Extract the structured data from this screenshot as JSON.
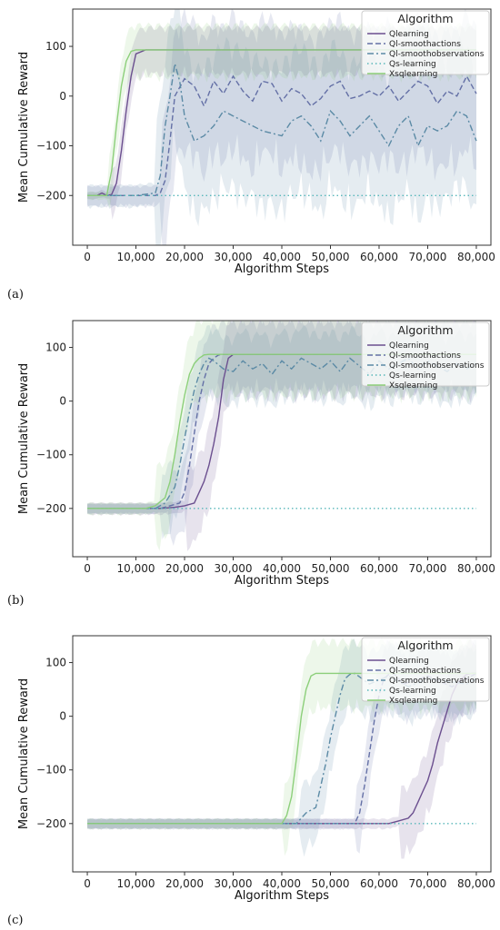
{
  "colors": {
    "Qlearning": "#6b4f8f",
    "Ql-smoothactions": "#6470a6",
    "Ql-smoothobservations": "#5b8aa5",
    "Qs-learning": "#58b7ba",
    "Xsqlearning": "#8ccf7a"
  },
  "chart_data": [
    {
      "type": "line",
      "panel_label": "(a)",
      "xlabel": "Algorithm Steps",
      "ylabel": "Mean Cumulative Reward",
      "xlim": [
        -3000,
        83000
      ],
      "ylim": [
        -300,
        175
      ],
      "xticks": [
        0,
        10000,
        20000,
        30000,
        40000,
        50000,
        60000,
        70000,
        80000
      ],
      "xtick_labels": [
        "0",
        "10,000",
        "20,000",
        "30,000",
        "40,000",
        "50,000",
        "60,000",
        "70,000",
        "80,000"
      ],
      "yticks": [
        -200,
        -100,
        0,
        100
      ],
      "ytick_labels": [
        "−200",
        "−100",
        "0",
        "100"
      ],
      "legend": {
        "title": "Algorithm",
        "placement": "top-right"
      },
      "series": [
        {
          "name": "Qlearning",
          "style": "solid",
          "x": [
            0,
            2000,
            3000,
            4000,
            5000,
            6000,
            7000,
            8000,
            9000,
            10000,
            12000,
            80000
          ],
          "y": [
            -200,
            -200,
            -195,
            -200,
            -198,
            -175,
            -110,
            -30,
            40,
            85,
            93,
            93
          ],
          "band": 45
        },
        {
          "name": "Ql-smoothactions",
          "style": "dashed",
          "x": [
            0,
            14000,
            15000,
            16000,
            17000,
            18000,
            20000,
            22000,
            24000,
            26000,
            28000,
            30000,
            32000,
            34000,
            36000,
            38000,
            40000,
            42000,
            44000,
            46000,
            48000,
            50000,
            52000,
            54000,
            56000,
            58000,
            60000,
            62000,
            64000,
            66000,
            68000,
            70000,
            72000,
            74000,
            76000,
            78000,
            80000
          ],
          "y": [
            -200,
            -200,
            -195,
            -170,
            -90,
            0,
            35,
            20,
            -20,
            30,
            5,
            40,
            10,
            -10,
            30,
            25,
            -10,
            15,
            5,
            -20,
            -5,
            20,
            30,
            -5,
            0,
            10,
            0,
            20,
            -10,
            10,
            30,
            20,
            -15,
            10,
            0,
            40,
            5
          ],
          "band": 130
        },
        {
          "name": "Ql-smoothobservations",
          "style": "dashdot",
          "x": [
            0,
            10000,
            14000,
            15000,
            16000,
            17000,
            18000,
            19000,
            20000,
            22000,
            24000,
            26000,
            28000,
            30000,
            32000,
            34000,
            36000,
            38000,
            40000,
            42000,
            44000,
            46000,
            48000,
            50000,
            52000,
            54000,
            56000,
            58000,
            60000,
            62000,
            64000,
            66000,
            68000,
            70000,
            72000,
            74000,
            76000,
            78000,
            80000
          ],
          "y": [
            -200,
            -200,
            -195,
            -160,
            -60,
            0,
            65,
            30,
            -40,
            -90,
            -80,
            -60,
            -30,
            -40,
            -50,
            -60,
            -70,
            -75,
            -80,
            -50,
            -40,
            -60,
            -90,
            -30,
            -50,
            -80,
            -60,
            -40,
            -70,
            -100,
            -60,
            -40,
            -100,
            -60,
            -70,
            -60,
            -30,
            -40,
            -90
          ],
          "band": 140
        },
        {
          "name": "Qs-learning",
          "style": "dotted",
          "x": [
            0,
            80000
          ],
          "y": [
            -200,
            -200
          ],
          "band": 0
        },
        {
          "name": "Xsqlearning",
          "style": "solid",
          "x": [
            0,
            4000,
            5000,
            6000,
            7000,
            8000,
            9000,
            10000,
            80000
          ],
          "y": [
            -200,
            -200,
            -150,
            -60,
            20,
            70,
            90,
            93,
            93
          ],
          "band": 50
        }
      ]
    },
    {
      "type": "line",
      "panel_label": "(b)",
      "xlabel": "Algorithm Steps",
      "ylabel": "Mean Cumulative Reward",
      "xlim": [
        -3000,
        83000
      ],
      "ylim": [
        -290,
        150
      ],
      "xticks": [
        0,
        10000,
        20000,
        30000,
        40000,
        50000,
        60000,
        70000,
        80000
      ],
      "xtick_labels": [
        "0",
        "10,000",
        "20,000",
        "30,000",
        "40,000",
        "50,000",
        "60,000",
        "70,000",
        "80,000"
      ],
      "yticks": [
        -200,
        -100,
        0,
        100
      ],
      "ytick_labels": [
        "−200",
        "−100",
        "0",
        "100"
      ],
      "legend": {
        "title": "Algorithm",
        "placement": "top-right"
      },
      "series": [
        {
          "name": "Qlearning",
          "style": "solid",
          "x": [
            0,
            15000,
            18000,
            20000,
            22000,
            23000,
            24000,
            25000,
            26000,
            27000,
            28000,
            29000,
            30000,
            80000
          ],
          "y": [
            -200,
            -200,
            -198,
            -195,
            -190,
            -170,
            -150,
            -120,
            -80,
            -30,
            40,
            80,
            87,
            87
          ],
          "band": 70
        },
        {
          "name": "Ql-smoothactions",
          "style": "dashed",
          "x": [
            0,
            15000,
            17000,
            19000,
            20000,
            21000,
            22000,
            23000,
            24000,
            25000,
            26000,
            27000,
            28000,
            80000
          ],
          "y": [
            -200,
            -200,
            -195,
            -190,
            -170,
            -120,
            -60,
            0,
            40,
            70,
            80,
            86,
            87,
            87
          ],
          "band": 60
        },
        {
          "name": "Ql-smoothobservations",
          "style": "dashdot",
          "x": [
            0,
            14000,
            16000,
            18000,
            19000,
            20000,
            21000,
            22000,
            23000,
            24000,
            25000,
            26000,
            28000,
            30000,
            32000,
            34000,
            36000,
            38000,
            40000,
            42000,
            44000,
            46000,
            48000,
            50000,
            52000,
            54000,
            56000,
            58000,
            60000,
            62000,
            64000,
            66000,
            68000,
            70000,
            72000,
            74000,
            76000,
            78000,
            80000
          ],
          "y": [
            -200,
            -200,
            -190,
            -160,
            -120,
            -70,
            -20,
            20,
            50,
            70,
            80,
            75,
            60,
            55,
            75,
            60,
            70,
            50,
            75,
            60,
            80,
            70,
            60,
            75,
            55,
            80,
            65,
            50,
            75,
            60,
            70,
            80,
            60,
            75,
            65,
            55,
            70,
            60,
            70
          ],
          "band": 60
        },
        {
          "name": "Qs-learning",
          "style": "dotted",
          "x": [
            0,
            80000
          ],
          "y": [
            -200,
            -200
          ],
          "band": 0
        },
        {
          "name": "Xsqlearning",
          "style": "solid",
          "x": [
            0,
            12000,
            14000,
            16000,
            17000,
            18000,
            19000,
            20000,
            21000,
            22000,
            23000,
            24000,
            25000,
            80000
          ],
          "y": [
            -200,
            -200,
            -195,
            -180,
            -150,
            -100,
            -40,
            10,
            50,
            70,
            80,
            86,
            87,
            87
          ],
          "band": 70
        }
      ]
    },
    {
      "type": "line",
      "panel_label": "(c)",
      "xlabel": "Algorithm Steps",
      "ylabel": "Mean Cumulative Reward",
      "xlim": [
        -3000,
        83000
      ],
      "ylim": [
        -290,
        150
      ],
      "xticks": [
        0,
        10000,
        20000,
        30000,
        40000,
        50000,
        60000,
        70000,
        80000
      ],
      "xtick_labels": [
        "0",
        "10,000",
        "20,000",
        "30,000",
        "40,000",
        "50,000",
        "60,000",
        "70,000",
        "80,000"
      ],
      "yticks": [
        -200,
        -100,
        0,
        100
      ],
      "ytick_labels": [
        "−200",
        "−100",
        "0",
        "100"
      ],
      "legend": {
        "title": "Algorithm",
        "placement": "top-right"
      },
      "series": [
        {
          "name": "Qlearning",
          "style": "solid",
          "x": [
            0,
            62000,
            64000,
            66000,
            67000,
            68000,
            69000,
            70000,
            71000,
            72000,
            73000,
            74000,
            75000,
            76000,
            77000,
            78000,
            79000,
            80000
          ],
          "y": [
            -200,
            -200,
            -195,
            -190,
            -180,
            -160,
            -140,
            -120,
            -90,
            -50,
            -20,
            10,
            40,
            60,
            70,
            78,
            80,
            80
          ],
          "band": 60
        },
        {
          "name": "Ql-smoothactions",
          "style": "dashed",
          "x": [
            0,
            55000,
            56000,
            57000,
            58000,
            59000,
            60000,
            61000,
            62000,
            63000,
            65000,
            70000,
            75000,
            80000
          ],
          "y": [
            -200,
            -200,
            -180,
            -130,
            -70,
            -10,
            40,
            70,
            78,
            80,
            60,
            75,
            55,
            80
          ],
          "band": 60
        },
        {
          "name": "Ql-smoothobservations",
          "style": "dashdot",
          "x": [
            0,
            43000,
            45000,
            47000,
            48000,
            49000,
            50000,
            51000,
            52000,
            53000,
            54000,
            55000,
            58000,
            62000,
            66000,
            70000,
            74000,
            78000,
            80000
          ],
          "y": [
            -200,
            -200,
            -180,
            -170,
            -130,
            -90,
            -40,
            0,
            40,
            70,
            78,
            80,
            60,
            75,
            55,
            70,
            65,
            60,
            70
          ],
          "band": 60
        },
        {
          "name": "Qs-learning",
          "style": "dotted",
          "x": [
            0,
            80000
          ],
          "y": [
            -200,
            -200
          ],
          "band": 0
        },
        {
          "name": "Xsqlearning",
          "style": "solid",
          "x": [
            0,
            40000,
            41000,
            42000,
            43000,
            44000,
            45000,
            46000,
            47000,
            80000
          ],
          "y": [
            -200,
            -200,
            -185,
            -150,
            -80,
            0,
            50,
            75,
            80,
            80
          ],
          "band": 60
        }
      ]
    }
  ]
}
